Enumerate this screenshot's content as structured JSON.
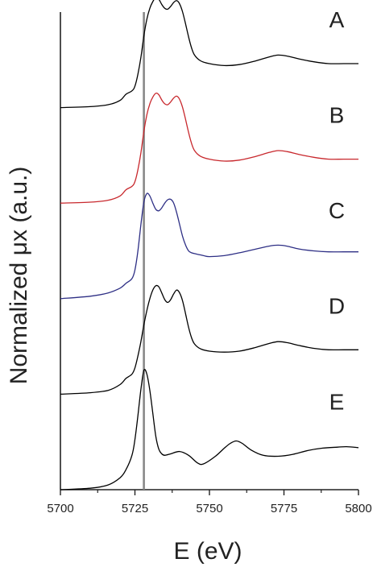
{
  "chart_data": {
    "type": "line",
    "xlabel": "E (eV)",
    "ylabel": "Normalized μx (a.u.)",
    "xlim": [
      5700,
      5800
    ],
    "ylim": [
      0,
      10
    ],
    "xticks": [
      5700,
      5725,
      5750,
      5775,
      5800
    ],
    "x_minor_ticks": [
      5712.5,
      5737.5,
      5762.5,
      5787.5
    ],
    "grid": false,
    "legend": "none",
    "reference_line": {
      "x": 5728,
      "color": "#888888"
    },
    "series": [
      {
        "name": "A",
        "color": "#000000",
        "offset": 8.0,
        "x": [
          5700,
          5710,
          5716,
          5720,
          5722,
          5724,
          5725,
          5726,
          5727,
          5728,
          5729,
          5730,
          5731,
          5732,
          5733,
          5734,
          5735,
          5736,
          5737,
          5738,
          5739,
          5740,
          5741,
          5742,
          5743,
          5744,
          5745,
          5747,
          5750,
          5755,
          5760,
          5765,
          5770,
          5773,
          5776,
          5780,
          5785,
          5790,
          5795,
          5800
        ],
        "y": [
          0,
          0.02,
          0.06,
          0.15,
          0.28,
          0.35,
          0.45,
          0.7,
          1.05,
          1.5,
          1.85,
          2.08,
          2.22,
          2.3,
          2.27,
          2.16,
          2.08,
          2.06,
          2.12,
          2.2,
          2.24,
          2.17,
          2.0,
          1.75,
          1.48,
          1.25,
          1.1,
          0.98,
          0.92,
          0.88,
          0.9,
          0.97,
          1.06,
          1.1,
          1.08,
          1.02,
          0.96,
          0.92,
          0.92,
          0.92
        ]
      },
      {
        "name": "B",
        "color": "#c8282d",
        "offset": 6.0,
        "x": [
          5700,
          5710,
          5716,
          5720,
          5722,
          5724,
          5725,
          5726,
          5727,
          5728,
          5729,
          5730,
          5731,
          5732,
          5733,
          5734,
          5735,
          5736,
          5737,
          5738,
          5739,
          5740,
          5741,
          5742,
          5743,
          5744,
          5745,
          5747,
          5750,
          5755,
          5760,
          5765,
          5770,
          5773,
          5776,
          5780,
          5785,
          5790,
          5795,
          5800
        ],
        "y": [
          0,
          0.02,
          0.06,
          0.15,
          0.28,
          0.35,
          0.45,
          0.7,
          1.05,
          1.5,
          1.85,
          2.08,
          2.22,
          2.3,
          2.27,
          2.16,
          2.08,
          2.06,
          2.12,
          2.2,
          2.24,
          2.17,
          2.0,
          1.75,
          1.48,
          1.25,
          1.1,
          0.98,
          0.92,
          0.88,
          0.9,
          0.97,
          1.06,
          1.1,
          1.08,
          1.02,
          0.96,
          0.92,
          0.92,
          0.92
        ]
      },
      {
        "name": "C",
        "color": "#2e2f85",
        "offset": 4.0,
        "x": [
          5700,
          5710,
          5716,
          5720,
          5722,
          5724,
          5725,
          5726,
          5727,
          5728,
          5729,
          5730,
          5731,
          5732,
          5733,
          5734,
          5735,
          5736,
          5737,
          5738,
          5739,
          5740,
          5741,
          5742,
          5743,
          5744,
          5746,
          5748,
          5750,
          5755,
          5760,
          5765,
          5770,
          5773,
          5776,
          5780,
          5785,
          5790,
          5795,
          5800
        ],
        "y": [
          0,
          0.05,
          0.12,
          0.22,
          0.32,
          0.42,
          0.6,
          1.0,
          1.55,
          2.02,
          2.2,
          2.15,
          2.0,
          1.87,
          1.84,
          1.9,
          2.0,
          2.07,
          2.08,
          2.0,
          1.8,
          1.55,
          1.3,
          1.12,
          1.0,
          0.96,
          0.93,
          0.9,
          0.88,
          0.9,
          0.96,
          1.03,
          1.1,
          1.12,
          1.1,
          1.04,
          1.0,
          0.98,
          0.98,
          0.98
        ]
      },
      {
        "name": "D",
        "color": "#000000",
        "offset": 2.0,
        "x": [
          5700,
          5710,
          5716,
          5720,
          5722,
          5724,
          5725,
          5726,
          5727,
          5728,
          5729,
          5730,
          5731,
          5732,
          5733,
          5734,
          5735,
          5736,
          5737,
          5738,
          5739,
          5740,
          5741,
          5742,
          5743,
          5744,
          5745,
          5747,
          5750,
          5755,
          5760,
          5765,
          5770,
          5773,
          5776,
          5780,
          5785,
          5790,
          5795,
          5800
        ],
        "y": [
          0,
          0.03,
          0.08,
          0.2,
          0.33,
          0.42,
          0.55,
          0.8,
          1.1,
          1.45,
          1.75,
          2.0,
          2.18,
          2.27,
          2.25,
          2.12,
          1.98,
          1.92,
          1.98,
          2.1,
          2.18,
          2.12,
          1.95,
          1.68,
          1.4,
          1.18,
          1.05,
          0.95,
          0.9,
          0.88,
          0.9,
          0.97,
          1.06,
          1.1,
          1.08,
          1.02,
          0.96,
          0.93,
          0.93,
          0.93
        ]
      },
      {
        "name": "E",
        "color": "#000000",
        "offset": 0.0,
        "x": [
          5700,
          5710,
          5716,
          5720,
          5722,
          5724,
          5725,
          5726,
          5727,
          5728,
          5729,
          5730,
          5731,
          5732,
          5733,
          5734,
          5735,
          5737,
          5740,
          5743,
          5746,
          5748,
          5752,
          5755,
          5757,
          5759,
          5761,
          5764,
          5768,
          5773,
          5778,
          5783,
          5788,
          5793,
          5796,
          5800
        ],
        "y": [
          0,
          0.03,
          0.1,
          0.25,
          0.42,
          0.72,
          1.05,
          1.55,
          2.1,
          2.5,
          2.42,
          2.08,
          1.6,
          1.12,
          0.85,
          0.75,
          0.72,
          0.75,
          0.8,
          0.72,
          0.56,
          0.54,
          0.7,
          0.87,
          0.97,
          1.02,
          0.97,
          0.83,
          0.72,
          0.7,
          0.74,
          0.82,
          0.87,
          0.89,
          0.9,
          0.88
        ]
      }
    ]
  }
}
